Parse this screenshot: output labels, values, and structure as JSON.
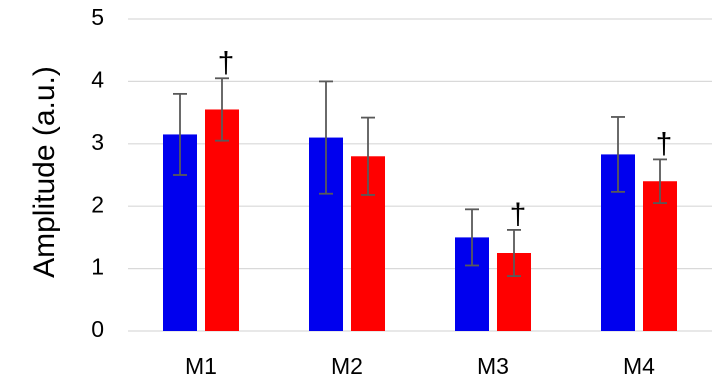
{
  "chart_data": {
    "type": "bar",
    "title": "",
    "xlabel": "",
    "ylabel": "Amplitude (a.u.)",
    "ylim": [
      0,
      5
    ],
    "yticks": [
      0,
      1,
      2,
      3,
      4,
      5
    ],
    "grid": "horizontal",
    "legend": "none",
    "categories": [
      "M1",
      "M2",
      "M3",
      "M4"
    ],
    "series": [
      {
        "color": "#0000ee",
        "values": [
          3.15,
          3.1,
          1.5,
          2.83
        ],
        "error": [
          0.65,
          0.9,
          0.45,
          0.6
        ]
      },
      {
        "color": "#ff0000",
        "values": [
          3.55,
          2.8,
          1.25,
          2.4
        ],
        "error": [
          0.5,
          0.62,
          0.37,
          0.35
        ],
        "markers": [
          "†",
          "",
          "†",
          "†"
        ]
      }
    ]
  }
}
